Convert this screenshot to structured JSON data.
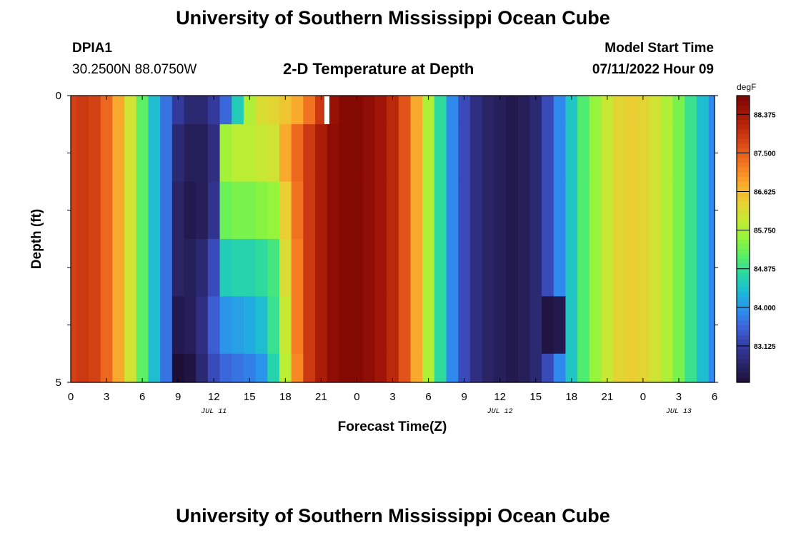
{
  "header": {
    "title": "University of Southern Mississippi Ocean Cube",
    "station": "DPIA1",
    "coords": "30.2500N  88.0750W",
    "subtitle": "2-D Temperature at Depth",
    "model_start_label": "Model Start Time",
    "model_start_value": "07/11/2022 Hour 09"
  },
  "footer": {
    "title": "University of Southern Mississippi Ocean Cube"
  },
  "chart_data": {
    "type": "heatmap",
    "title": "2-D Temperature at Depth",
    "xlabel": "Forecast Time(Z)",
    "ylabel": "Depth (ft)",
    "x_ticks": [
      "0",
      "3",
      "6",
      "9",
      "12",
      "15",
      "18",
      "21",
      "0",
      "3",
      "6",
      "9",
      "12",
      "15",
      "18",
      "21",
      "0",
      "3",
      "6"
    ],
    "date_labels": [
      "JUL 11",
      "JUL 12",
      "JUL 13"
    ],
    "y_ticks": [
      "0",
      "5"
    ],
    "ylim": [
      0,
      5
    ],
    "colorbar": {
      "unit": "degF",
      "ticks": [
        "88.375",
        "87.500",
        "86.625",
        "85.750",
        "84.875",
        "84.000",
        "83.125"
      ],
      "range": [
        82.3,
        88.8
      ],
      "colors": [
        "#1c0f36",
        "#2a2466",
        "#343a9e",
        "#3d5fd6",
        "#2f8df0",
        "#1cb9d8",
        "#27d6a8",
        "#55ee6a",
        "#8ef53c",
        "#c3ec34",
        "#e8d133",
        "#f9ae2e",
        "#f77f22",
        "#e2561a",
        "#c5300f",
        "#a11606",
        "#7c0502"
      ]
    },
    "grid": false,
    "time_hours": [
      0,
      1,
      2,
      3,
      4,
      5,
      6,
      7,
      8,
      9,
      10,
      11,
      12,
      13,
      14,
      15,
      16,
      17,
      18,
      19,
      20,
      21,
      22,
      23,
      24,
      25,
      26,
      27,
      28,
      29,
      30,
      31,
      32,
      33,
      34,
      35,
      36,
      37,
      38,
      39,
      40,
      41,
      42,
      43,
      44,
      45,
      46,
      47,
      48,
      49,
      50,
      51,
      52,
      53,
      54
    ],
    "depth_bands_ft": [
      "0-0.5",
      "0.5-1.5",
      "1.5-2.5",
      "2.5-3.5",
      "3.5-4.5",
      "4.5-5"
    ],
    "temperature_degF": [
      [
        87.8,
        87.9,
        87.8,
        87.4,
        86.8,
        86.1,
        85.2,
        84.4,
        83.7,
        83.1,
        82.8,
        82.8,
        83.1,
        83.6,
        84.6,
        85.8,
        86.2,
        86.3,
        86.5,
        86.8,
        87.3,
        87.9,
        88.5,
        88.7,
        88.7,
        88.6,
        88.4,
        88.1,
        87.6,
        86.8,
        85.8,
        84.8,
        83.9,
        83.3,
        82.9,
        82.7,
        82.6,
        82.5,
        82.6,
        82.8,
        83.3,
        83.9,
        84.5,
        85.1,
        85.6,
        86.0,
        86.3,
        86.4,
        86.3,
        86.1,
        85.8,
        85.4,
        84.9,
        84.4,
        83.9
      ],
      [
        87.8,
        87.9,
        87.8,
        87.4,
        86.8,
        86.1,
        85.2,
        84.4,
        83.7,
        82.8,
        82.6,
        82.6,
        82.9,
        85.7,
        85.9,
        85.9,
        86.0,
        86.1,
        86.8,
        87.4,
        87.9,
        88.3,
        88.6,
        88.7,
        88.7,
        88.6,
        88.4,
        88.1,
        87.6,
        86.8,
        85.8,
        84.8,
        83.9,
        83.3,
        82.9,
        82.7,
        82.6,
        82.5,
        82.6,
        82.8,
        83.3,
        83.9,
        84.5,
        85.1,
        85.6,
        86.0,
        86.3,
        86.4,
        86.3,
        86.1,
        85.8,
        85.4,
        84.9,
        84.4,
        83.9
      ],
      [
        87.8,
        87.9,
        87.8,
        87.4,
        86.8,
        86.1,
        85.2,
        84.4,
        83.7,
        82.7,
        82.5,
        82.6,
        83.0,
        85.3,
        85.4,
        85.4,
        85.5,
        85.6,
        86.4,
        87.3,
        87.9,
        88.3,
        88.6,
        88.7,
        88.7,
        88.6,
        88.4,
        88.1,
        87.6,
        86.8,
        85.8,
        84.8,
        83.9,
        83.3,
        82.9,
        82.7,
        82.6,
        82.5,
        82.6,
        82.8,
        83.3,
        83.9,
        84.5,
        85.1,
        85.6,
        86.0,
        86.3,
        86.4,
        86.3,
        86.1,
        85.8,
        85.4,
        84.9,
        84.4,
        83.9
      ],
      [
        87.8,
        87.9,
        87.8,
        87.4,
        86.8,
        86.1,
        85.2,
        84.4,
        83.7,
        82.7,
        82.6,
        82.8,
        83.3,
        84.6,
        84.7,
        84.7,
        84.8,
        85.0,
        86.2,
        87.2,
        87.9,
        88.3,
        88.6,
        88.7,
        88.7,
        88.6,
        88.4,
        88.1,
        87.6,
        86.8,
        85.8,
        84.8,
        83.9,
        83.3,
        82.9,
        82.7,
        82.6,
        82.5,
        82.6,
        82.8,
        83.3,
        83.9,
        84.5,
        85.1,
        85.6,
        86.0,
        86.3,
        86.4,
        86.3,
        86.1,
        85.8,
        85.4,
        84.9,
        84.4,
        83.9
      ],
      [
        87.8,
        87.9,
        87.8,
        87.4,
        86.8,
        86.1,
        85.2,
        84.4,
        83.7,
        82.5,
        82.6,
        82.9,
        83.5,
        84.0,
        84.1,
        84.2,
        84.4,
        84.9,
        86.0,
        87.2,
        87.9,
        88.3,
        88.6,
        88.7,
        88.7,
        88.6,
        88.4,
        88.1,
        87.6,
        86.8,
        85.8,
        84.8,
        83.9,
        83.3,
        82.9,
        82.7,
        82.6,
        82.5,
        82.6,
        82.8,
        82.4,
        82.5,
        84.5,
        85.1,
        85.6,
        86.0,
        86.3,
        86.4,
        86.3,
        86.1,
        85.8,
        85.4,
        84.9,
        84.4,
        83.9
      ],
      [
        87.8,
        87.9,
        87.8,
        87.4,
        86.8,
        86.1,
        85.2,
        84.4,
        83.7,
        82.3,
        82.4,
        82.8,
        83.3,
        83.6,
        83.7,
        83.8,
        84.0,
        84.7,
        85.9,
        87.1,
        87.9,
        88.3,
        88.6,
        88.7,
        88.7,
        88.6,
        88.4,
        88.1,
        87.6,
        86.8,
        85.8,
        84.8,
        83.9,
        83.3,
        82.9,
        82.7,
        82.6,
        82.5,
        82.6,
        82.8,
        83.3,
        83.9,
        84.5,
        85.1,
        85.6,
        86.0,
        86.3,
        86.4,
        86.3,
        86.1,
        85.8,
        85.4,
        84.9,
        84.4,
        83.9
      ]
    ]
  }
}
